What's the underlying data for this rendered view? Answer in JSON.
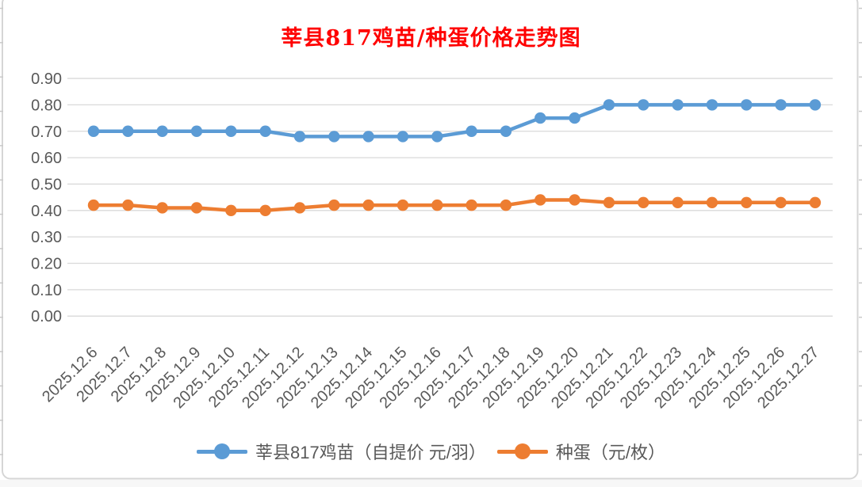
{
  "chart_data": {
    "type": "line",
    "title": "莘县817鸡苗/种蛋价格走势图",
    "title_color": "#FF0000",
    "categories": [
      "2025.12.6",
      "2025.12.7",
      "2025.12.8",
      "2025.12.9",
      "2025.12.10",
      "2025.12.11",
      "2025.12.12",
      "2025.12.13",
      "2025.12.14",
      "2025.12.15",
      "2025.12.16",
      "2025.12.17",
      "2025.12.18",
      "2025.12.19",
      "2025.12.20",
      "2025.12.21",
      "2025.12.22",
      "2025.12.23",
      "2025.12.24",
      "2025.12.25",
      "2025.12.26",
      "2025.12.27"
    ],
    "series": [
      {
        "name": "莘县817鸡苗（自提价 元/羽）",
        "color": "#5B9BD5",
        "values": [
          0.7,
          0.7,
          0.7,
          0.7,
          0.7,
          0.7,
          0.68,
          0.68,
          0.68,
          0.68,
          0.68,
          0.7,
          0.7,
          0.75,
          0.75,
          0.8,
          0.8,
          0.8,
          0.8,
          0.8,
          0.8,
          0.8
        ]
      },
      {
        "name": "种蛋（元/枚）",
        "color": "#ED7D31",
        "values": [
          0.42,
          0.42,
          0.41,
          0.41,
          0.4,
          0.4,
          0.41,
          0.42,
          0.42,
          0.42,
          0.42,
          0.42,
          0.42,
          0.44,
          0.44,
          0.43,
          0.43,
          0.43,
          0.43,
          0.43,
          0.43,
          0.43
        ]
      }
    ],
    "ylim": [
      0.0,
      0.9
    ],
    "ytick_step": 0.1,
    "y_tick_labels": [
      "0.00",
      "0.10",
      "0.20",
      "0.30",
      "0.40",
      "0.50",
      "0.60",
      "0.70",
      "0.80",
      "0.90"
    ],
    "grid": true,
    "legend_position": "bottom",
    "x_label_rotation_deg": 45
  },
  "style_colors": {
    "gridline": "#D9D9D9",
    "axis_text": "#595959",
    "chart_border": "#D6D6D6",
    "sheet_tick": "#C9C9C9",
    "below_chart_strip": "#F7F7F7"
  }
}
